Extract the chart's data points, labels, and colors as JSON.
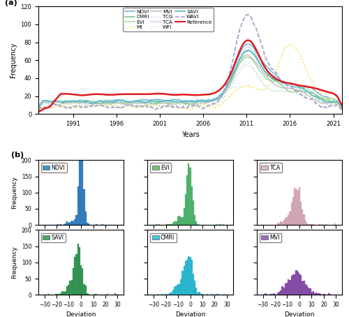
{
  "panel_a": {
    "ylabel": "Frequency",
    "xlabel": "Years",
    "ylim": [
      0,
      120
    ],
    "xlim": [
      1987,
      2022
    ],
    "xticks": [
      1991,
      1996,
      2001,
      2006,
      2011,
      2016,
      2021
    ],
    "yticks": [
      0,
      20,
      40,
      60,
      80,
      100,
      120
    ],
    "legend_order": [
      "NDVI",
      "CMRI",
      "EVI",
      "MI",
      "MVI",
      "TCG",
      "TCA",
      "WFI",
      "SAVI",
      "WAVI",
      "Reference"
    ],
    "lines": {
      "NDVI": {
        "color": "#6BAED6",
        "linestyle": "-",
        "linewidth": 1.0
      },
      "CMRI": {
        "color": "#74C476",
        "linestyle": "-",
        "linewidth": 1.0
      },
      "EVI": {
        "color": "#A1D99B",
        "linestyle": "-",
        "linewidth": 1.0
      },
      "MI": {
        "color": "#FDD835",
        "linestyle": ":",
        "linewidth": 1.2
      },
      "MVI": {
        "color": "#BDBDBD",
        "linestyle": "-",
        "linewidth": 1.0
      },
      "TCG": {
        "color": "#D9D9D9",
        "linestyle": ":",
        "linewidth": 1.2
      },
      "TCA": {
        "color": "#C6DBEF",
        "linestyle": "-",
        "linewidth": 1.0
      },
      "WFI": {
        "color": "#C7E9C0",
        "linestyle": ":",
        "linewidth": 1.2
      },
      "SAVI": {
        "color": "#41B6C4",
        "linestyle": "-",
        "linewidth": 1.0
      },
      "WAVI": {
        "color": "#9E9AC8",
        "linestyle": "--",
        "linewidth": 1.2
      },
      "Reference": {
        "color": "#E31A1C",
        "linestyle": "-",
        "linewidth": 1.8
      }
    }
  },
  "panel_b": {
    "histograms": [
      {
        "name": "NDVI",
        "color": "#2171B5",
        "patch_color": "#4292C6",
        "row": 0,
        "col": 0
      },
      {
        "name": "EVI",
        "color": "#41AB5D",
        "patch_color": "#74C476",
        "row": 0,
        "col": 1
      },
      {
        "name": "TCA",
        "color": "#CE9EB0",
        "patch_color": "#DCBCCA",
        "row": 0,
        "col": 2
      },
      {
        "name": "SAVI",
        "color": "#238B45",
        "patch_color": "#41AB5D",
        "row": 1,
        "col": 0
      },
      {
        "name": "CMRI",
        "color": "#1AAFCA",
        "patch_color": "#45C7E0",
        "row": 1,
        "col": 1
      },
      {
        "name": "MVI",
        "color": "#7B3FA0",
        "patch_color": "#9E6DC0",
        "row": 1,
        "col": 2
      }
    ],
    "xlabel": "Deviation",
    "ylabel": "Frequency",
    "xlim": [
      -35,
      35
    ],
    "xticks": [
      -30,
      -20,
      -10,
      0,
      10,
      20,
      30
    ],
    "ylim": [
      0,
      200
    ],
    "yticks": [
      0,
      50,
      100,
      150,
      200
    ]
  }
}
